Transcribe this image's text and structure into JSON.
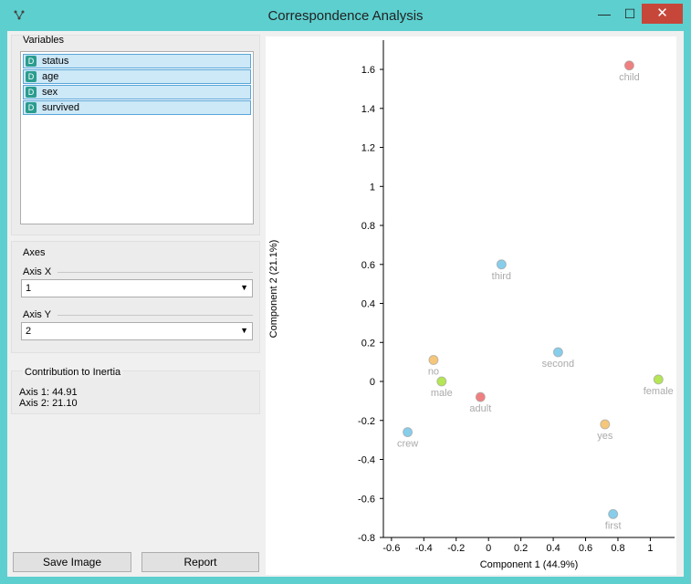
{
  "window": {
    "title": "Correspondence Analysis",
    "min_glyph": "—",
    "max_glyph": "☐",
    "close_glyph": "✕"
  },
  "variables": {
    "title": "Variables",
    "items": [
      {
        "badge": "D",
        "label": "status"
      },
      {
        "badge": "D",
        "label": "age"
      },
      {
        "badge": "D",
        "label": "sex"
      },
      {
        "badge": "D",
        "label": "survived"
      }
    ]
  },
  "axes": {
    "title": "Axes",
    "axis_x_label": "Axis X",
    "axis_x_value": "1",
    "axis_y_label": "Axis Y",
    "axis_y_value": "2"
  },
  "inertia": {
    "title": "Contribution to Inertia",
    "axis1": "Axis 1: 44.91",
    "axis2": "Axis 2: 21.10"
  },
  "buttons": {
    "save_image": "Save Image",
    "report": "Report"
  },
  "chart_data": {
    "type": "scatter",
    "xlabel": "Component 1 (44.9%)",
    "ylabel": "Component 2 (21.1%)",
    "xlim": [
      -0.65,
      1.15
    ],
    "ylim": [
      -0.8,
      1.75
    ],
    "xticks": [
      "-0.6",
      "-0.4",
      "-0.2",
      "0",
      "0.2",
      "0.4",
      "0.6",
      "0.8",
      "1"
    ],
    "yticks": [
      "-0.8",
      "-0.6",
      "-0.4",
      "-0.2",
      "0",
      "0.2",
      "0.4",
      "0.6",
      "0.8",
      "1",
      "1.2",
      "1.4",
      "1.6"
    ],
    "grid": false,
    "series": [
      {
        "color": "#f08080",
        "points": [
          {
            "label": "child",
            "x": 0.87,
            "y": 1.62
          },
          {
            "label": "adult",
            "x": -0.05,
            "y": -0.08
          }
        ]
      },
      {
        "color": "#87ceeb",
        "points": [
          {
            "label": "third",
            "x": 0.08,
            "y": 0.6
          },
          {
            "label": "second",
            "x": 0.43,
            "y": 0.15
          },
          {
            "label": "crew",
            "x": -0.5,
            "y": -0.26
          },
          {
            "label": "first",
            "x": 0.77,
            "y": -0.68
          }
        ]
      },
      {
        "color": "#f5c77a",
        "points": [
          {
            "label": "no",
            "x": -0.34,
            "y": 0.11
          },
          {
            "label": "yes",
            "x": 0.72,
            "y": -0.22
          }
        ]
      },
      {
        "color": "#b5e655",
        "points": [
          {
            "label": "male",
            "x": -0.29,
            "y": 0.0
          },
          {
            "label": "female",
            "x": 1.05,
            "y": 0.01
          }
        ]
      }
    ]
  }
}
